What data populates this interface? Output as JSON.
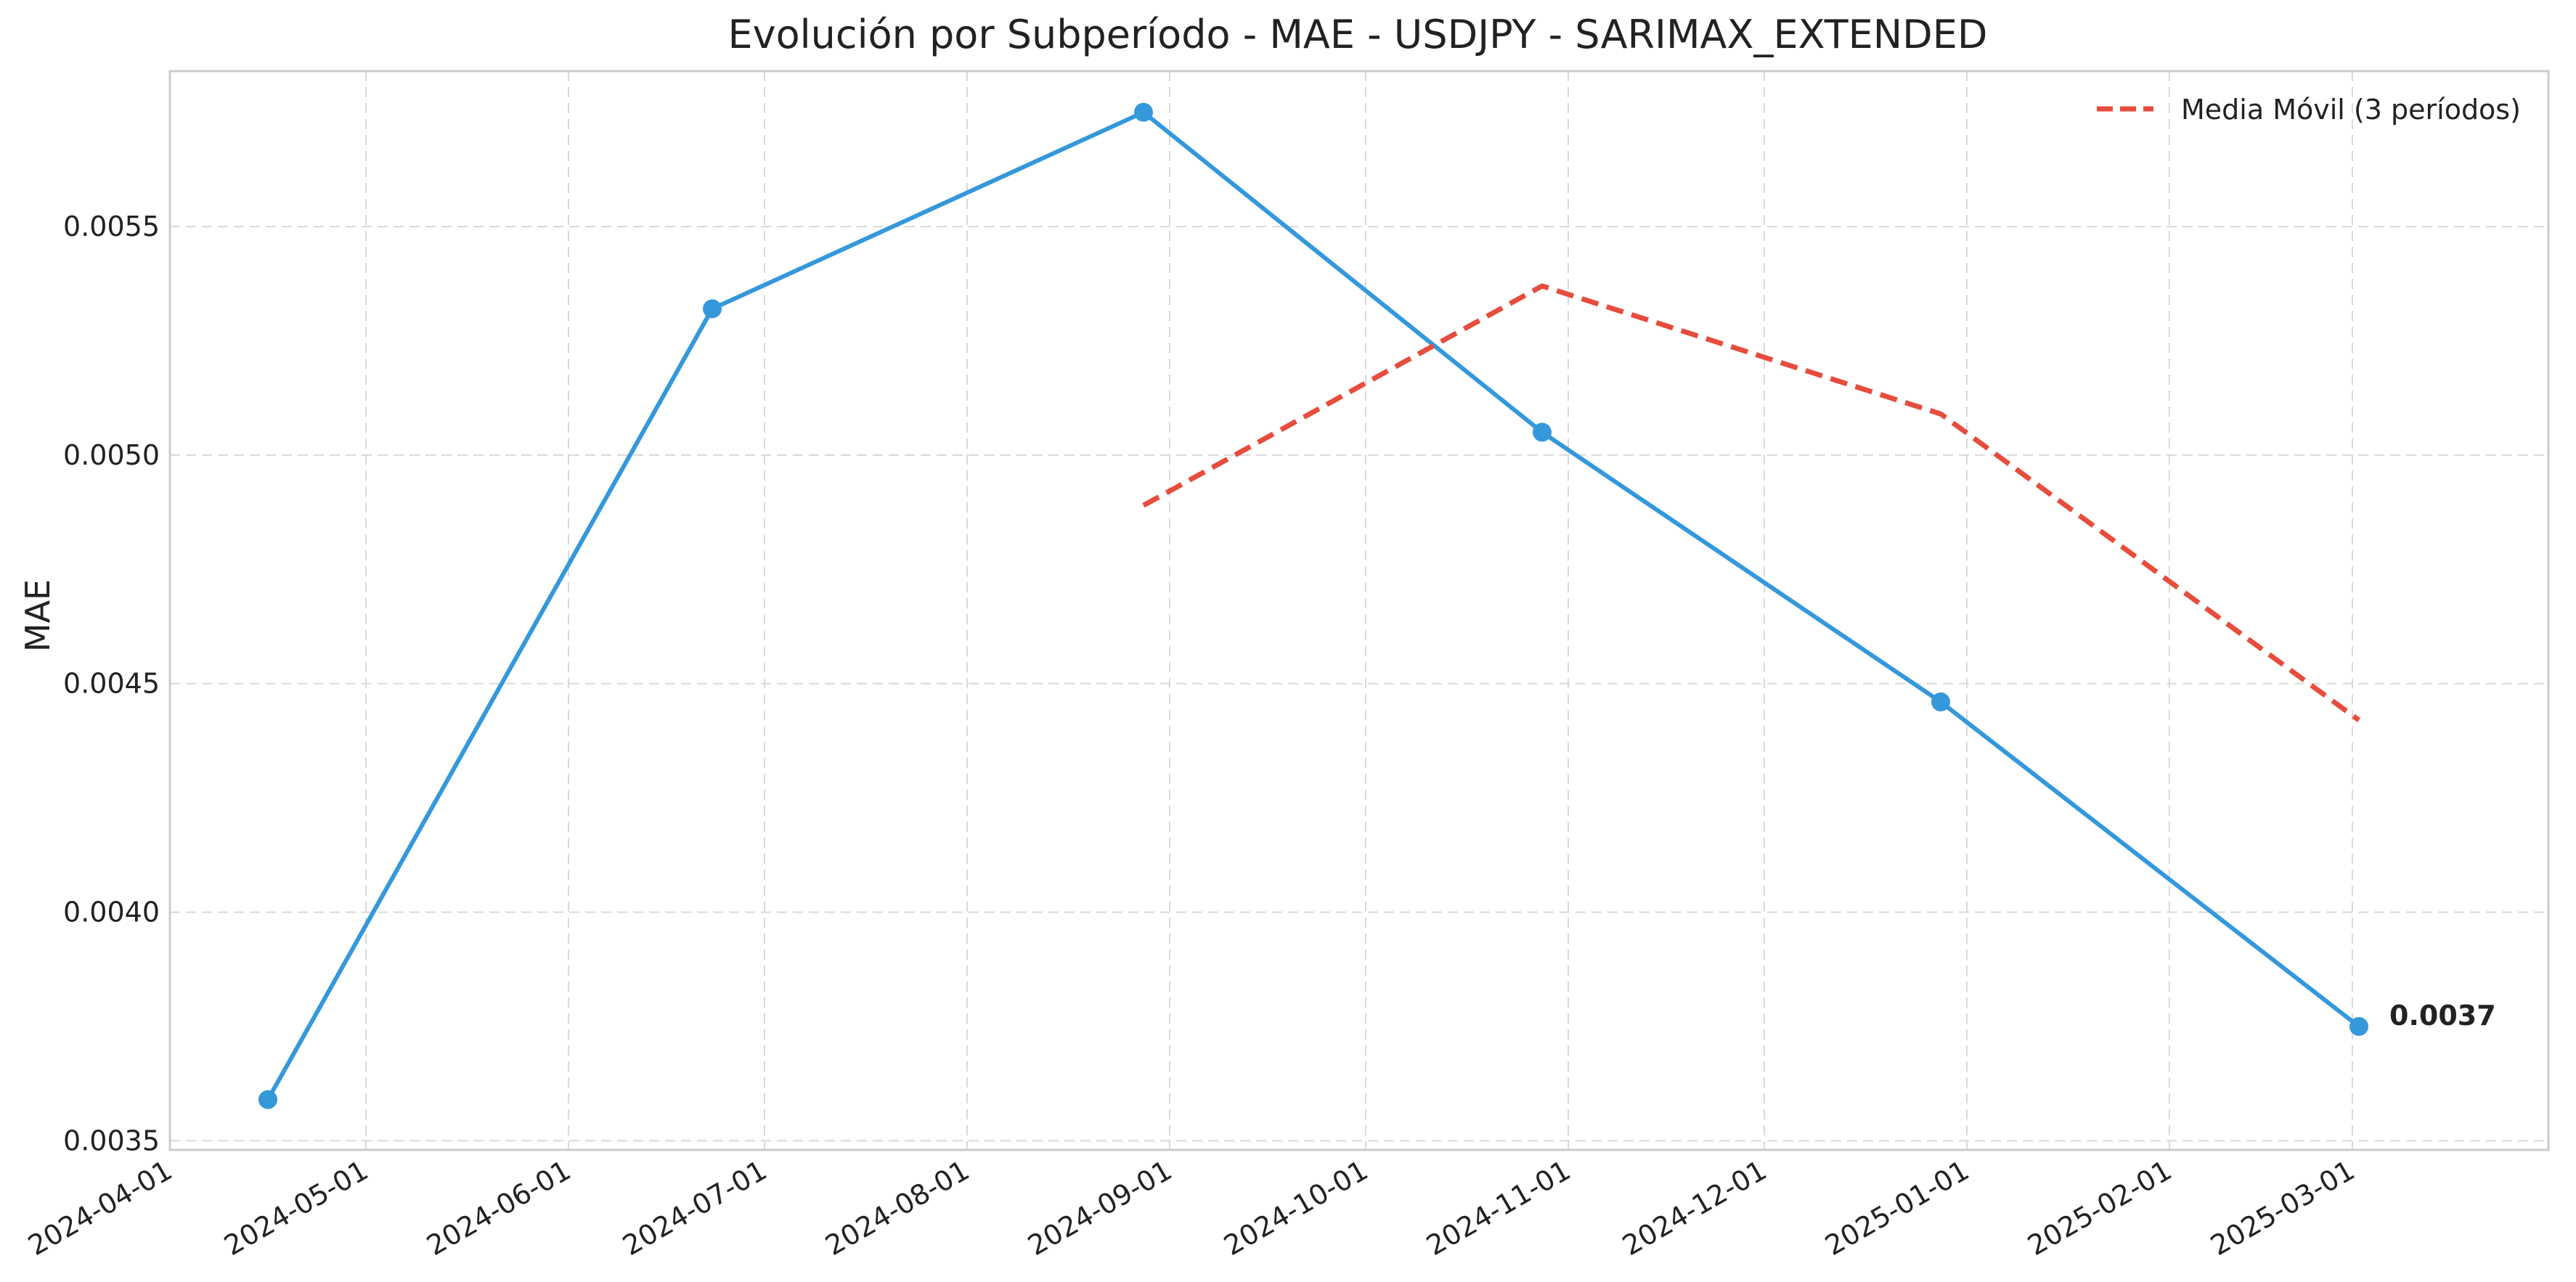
{
  "chart_data": {
    "type": "line",
    "title": "Evolución por Subperíodo - MAE - USDJPY - SARIMAX_EXTENDED",
    "xlabel": "",
    "ylabel": "MAE",
    "x_axis_type": "date",
    "xlim": [
      "2024-04-01",
      "2025-03-31"
    ],
    "ylim": [
      0.00348,
      0.00584
    ],
    "x_ticks": [
      "2024-04-01",
      "2024-05-01",
      "2024-06-01",
      "2024-07-01",
      "2024-08-01",
      "2024-09-01",
      "2024-10-01",
      "2024-11-01",
      "2024-12-01",
      "2025-01-01",
      "2025-02-01",
      "2025-03-01"
    ],
    "y_ticks": [
      0.0035,
      0.004,
      0.0045,
      0.005,
      0.0055
    ],
    "y_tick_labels": [
      "0.0035",
      "0.0040",
      "0.0045",
      "0.0050",
      "0.0055"
    ],
    "grid": true,
    "legend_position": "top-right",
    "series": [
      {
        "key": "mae",
        "style": "solid",
        "markers": true,
        "color": "#3498db",
        "x": [
          "2024-04-16",
          "2024-06-23",
          "2024-08-28",
          "2024-10-28",
          "2024-12-28",
          "2025-03-02"
        ],
        "values": [
          0.00359,
          0.00532,
          0.00575,
          0.00505,
          0.00446,
          0.00375
        ]
      },
      {
        "key": "moving_average",
        "name": "Media Móvil (3 períodos)",
        "style": "dashed",
        "markers": false,
        "color": "#e74c3c",
        "x": [
          "2024-08-28",
          "2024-10-28",
          "2024-12-28",
          "2025-03-02"
        ],
        "values": [
          0.00489,
          0.00537,
          0.00509,
          0.00442
        ]
      }
    ],
    "annotations": [
      {
        "text": "0.0037",
        "x": "2025-03-02",
        "y": 0.00375,
        "bold": true
      }
    ]
  }
}
